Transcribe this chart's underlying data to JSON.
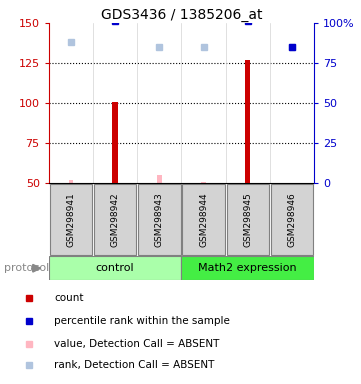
{
  "title": "GDS3436 / 1385206_at",
  "samples": [
    "GSM298941",
    "GSM298942",
    "GSM298943",
    "GSM298944",
    "GSM298945",
    "GSM298946"
  ],
  "ylim_left": [
    50,
    150
  ],
  "ylim_right": [
    0,
    100
  ],
  "yticks_left": [
    50,
    75,
    100,
    125,
    150
  ],
  "yticks_right": [
    0,
    25,
    50,
    75,
    100
  ],
  "ytick_labels_right": [
    "0",
    "25",
    "50",
    "75",
    "100%"
  ],
  "count_values": [
    null,
    101,
    null,
    null,
    127,
    null
  ],
  "count_color": "#CC0000",
  "count_bar_width": 0.12,
  "percentile_rank_values": [
    null,
    101,
    null,
    null,
    101,
    85
  ],
  "percentile_rank_color": "#0000CC",
  "percentile_rank_size": 5,
  "absent_value_values": [
    52,
    52,
    55,
    51,
    51,
    50
  ],
  "absent_value_color": "#FFB6C1",
  "absent_value_bar_width": 0.1,
  "absent_rank_values": [
    88,
    null,
    85,
    85,
    null,
    85
  ],
  "absent_rank_color": "#B0C4DE",
  "absent_rank_size": 5,
  "left_axis_color": "#CC0000",
  "right_axis_color": "#0000CC",
  "sample_box_color": "#D3D3D3",
  "control_color": "#AAFFAA",
  "math2_color": "#44EE44",
  "protocol_label": "protocol",
  "legend_items": [
    {
      "color": "#CC0000",
      "label": "count"
    },
    {
      "color": "#0000CC",
      "label": "percentile rank within the sample"
    },
    {
      "color": "#FFB6C1",
      "label": "value, Detection Call = ABSENT"
    },
    {
      "color": "#B0C4DE",
      "label": "rank, Detection Call = ABSENT"
    }
  ]
}
